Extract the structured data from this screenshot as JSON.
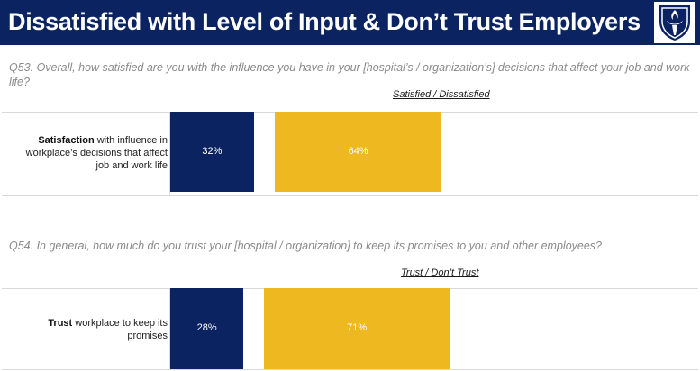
{
  "header": {
    "title": "Dissatisfied with Level of Input & Don’t Trust Employers"
  },
  "colors": {
    "header_bg": "#0b2461",
    "positive_bar": "#0b2461",
    "negative_bar": "#eeb820"
  },
  "logo": {
    "icon": "torch-shield-icon"
  },
  "chart_data": [
    {
      "type": "bar",
      "question": "Q53. Overall, how satisfied are you with the influence you have in your [hospital’s / organization’s] decisions that affect your job and work life?",
      "scale_label": "Satisfied / Dissatisfied",
      "label_bold": "Satisfaction",
      "label_rest": " with influence in workplace’s decisions that affect job and work life",
      "series": [
        {
          "name": "Satisfied",
          "value": 32,
          "label": "32%"
        },
        {
          "name": "Dissatisfied",
          "value": 64,
          "label": "64%"
        }
      ]
    },
    {
      "type": "bar",
      "question": "Q54. In general, how much do you trust your [hospital / organization] to keep its promises to you and other employees?",
      "scale_label": "Trust / Don’t Trust",
      "label_bold": "Trust",
      "label_rest": " workplace to keep its promises",
      "series": [
        {
          "name": "Trust",
          "value": 28,
          "label": "28%"
        },
        {
          "name": "Don’t Trust",
          "value": 71,
          "label": "71%"
        }
      ]
    }
  ]
}
